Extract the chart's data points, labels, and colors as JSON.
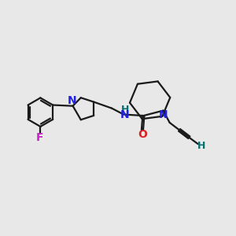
{
  "bg_color": "#e8e8e8",
  "bond_color": "#1a1a1a",
  "N_color": "#2020dd",
  "O_color": "#dd2020",
  "F_color": "#cc22cc",
  "H_color": "#007070",
  "line_width": 1.6,
  "figsize": [
    3.0,
    3.0
  ],
  "dpi": 100,
  "xlim": [
    0,
    10
  ],
  "ylim": [
    2,
    8
  ]
}
